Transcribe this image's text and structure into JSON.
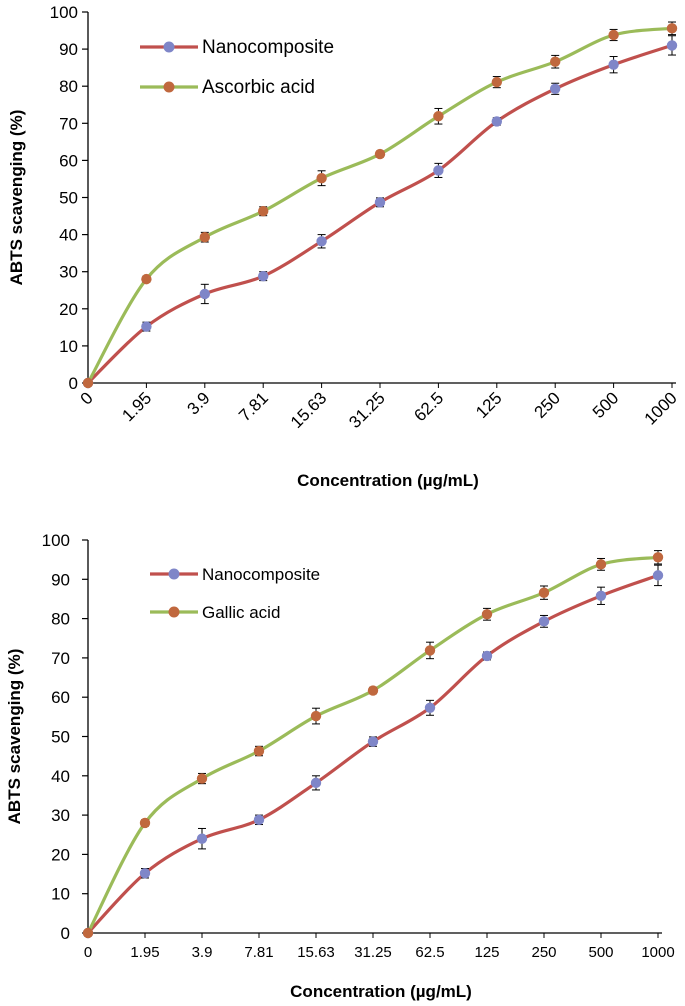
{
  "chart_data": [
    {
      "type": "line",
      "id": "chart1",
      "categories": [
        "0",
        "1.95",
        "3.9",
        "7.81",
        "15.63",
        "31.25",
        "62.5",
        "125",
        "250",
        "500",
        "1000"
      ],
      "series": [
        {
          "name": "Nanocomposite",
          "values": [
            0,
            15.2,
            24.0,
            28.8,
            38.2,
            48.7,
            57.3,
            70.5,
            79.3,
            85.8,
            91.0
          ],
          "errors": [
            0,
            1.2,
            2.6,
            1.2,
            1.8,
            1.2,
            1.9,
            1.0,
            1.5,
            2.2,
            2.6
          ],
          "line_color": "#c0504d",
          "marker_color": "#7f86c8"
        },
        {
          "name": "Ascorbic acid",
          "values": [
            0,
            28.0,
            39.3,
            46.3,
            55.2,
            61.7,
            71.9,
            81.1,
            86.6,
            93.8,
            95.6
          ],
          "errors": [
            0,
            0.8,
            1.3,
            1.2,
            2.0,
            0.8,
            2.1,
            1.5,
            1.7,
            1.5,
            1.7
          ],
          "line_color": "#9bbb59",
          "marker_color": "#c0683e"
        }
      ],
      "xlabel": "Concentration (µg/mL)",
      "ylabel": "ABTS scavenging (%)",
      "ylim": [
        0,
        100
      ],
      "yticks": [
        0,
        10,
        20,
        30,
        40,
        50,
        60,
        70,
        80,
        90,
        100
      ],
      "legend": "top-left"
    },
    {
      "type": "line",
      "id": "chart2",
      "categories": [
        "0",
        "1.95",
        "3.9",
        "7.81",
        "15.63",
        "31.25",
        "62.5",
        "125",
        "250",
        "500",
        "1000"
      ],
      "series": [
        {
          "name": "Nanocomposite",
          "values": [
            0,
            15.2,
            24.0,
            28.8,
            38.2,
            48.7,
            57.3,
            70.5,
            79.3,
            85.8,
            91.0
          ],
          "errors": [
            0,
            1.2,
            2.6,
            1.2,
            1.8,
            1.2,
            1.9,
            1.0,
            1.5,
            2.2,
            2.6
          ],
          "line_color": "#c0504d",
          "marker_color": "#7f86c8"
        },
        {
          "name": "Gallic acid",
          "values": [
            0,
            28.0,
            39.3,
            46.3,
            55.2,
            61.7,
            71.9,
            81.1,
            86.6,
            93.8,
            95.6
          ],
          "errors": [
            0,
            0.8,
            1.3,
            1.2,
            2.0,
            0.8,
            2.1,
            1.5,
            1.7,
            1.5,
            1.7
          ],
          "line_color": "#9bbb59",
          "marker_color": "#c0683e"
        }
      ],
      "xlabel": "Concentration (µg/mL)",
      "ylabel": "ABTS scavenging (%)",
      "ylim": [
        0,
        100
      ],
      "yticks": [
        0,
        10,
        20,
        30,
        40,
        50,
        60,
        70,
        80,
        90,
        100
      ],
      "legend": "top-left"
    }
  ]
}
